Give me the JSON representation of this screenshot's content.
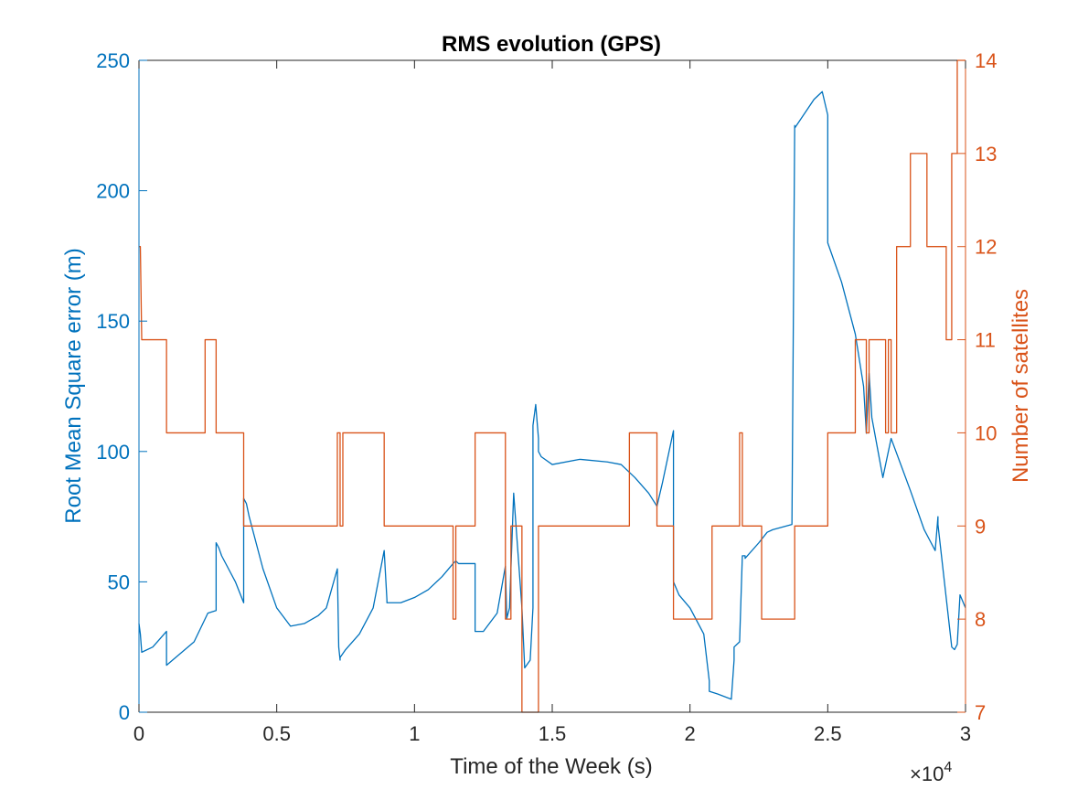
{
  "chart_data": {
    "type": "line",
    "title": "RMS evolution (GPS)",
    "xlabel": "Time of the Week (s)",
    "x_exponent_label": "×10",
    "x_exponent_power": "4",
    "xlim": [
      0,
      3
    ],
    "x_ticks": [
      0,
      0.5,
      1,
      1.5,
      2,
      2.5,
      3
    ],
    "x_tick_labels": [
      "0",
      "0.5",
      "1",
      "1.5",
      "2",
      "2.5",
      "3"
    ],
    "left_axis": {
      "label": "Root Mean Square error (m)",
      "ylim": [
        0,
        250
      ],
      "ticks": [
        0,
        50,
        100,
        150,
        200,
        250
      ],
      "tick_labels": [
        "0",
        "50",
        "100",
        "150",
        "200",
        "250"
      ],
      "color": "#0072BD"
    },
    "right_axis": {
      "label": "Number of satellites",
      "ylim": [
        7,
        14
      ],
      "ticks": [
        7,
        8,
        9,
        10,
        11,
        12,
        13,
        14
      ],
      "tick_labels": [
        "7",
        "8",
        "9",
        "10",
        "11",
        "12",
        "13",
        "14"
      ],
      "color": "#D95319"
    },
    "grid": false,
    "series": [
      {
        "axis": "left",
        "color": "#0072BD",
        "x": [
          0,
          0.005,
          0.01,
          0.05,
          0.1,
          0.1,
          0.2,
          0.25,
          0.28,
          0.28,
          0.29,
          0.3,
          0.35,
          0.38,
          0.38,
          0.39,
          0.4,
          0.45,
          0.5,
          0.55,
          0.6,
          0.65,
          0.68,
          0.72,
          0.725,
          0.73,
          0.73,
          0.75,
          0.8,
          0.85,
          0.89,
          0.9,
          0.9,
          0.95,
          1.0,
          1.05,
          1.1,
          1.14,
          1.15,
          1.16,
          1.22,
          1.22,
          1.25,
          1.3,
          1.33,
          1.335,
          1.345,
          1.36,
          1.39,
          1.4,
          1.42,
          1.43,
          1.43,
          1.44,
          1.45,
          1.45,
          1.46,
          1.5,
          1.6,
          1.7,
          1.75,
          1.8,
          1.85,
          1.88,
          1.9,
          1.94,
          1.94,
          1.96,
          2.0,
          2.05,
          2.07,
          2.07,
          2.1,
          2.15,
          2.16,
          2.16,
          2.18,
          2.19,
          2.2,
          2.2,
          2.25,
          2.28,
          2.28,
          2.3,
          2.37,
          2.38,
          2.38,
          2.45,
          2.48,
          2.5,
          2.5,
          2.55,
          2.6,
          2.63,
          2.64,
          2.65,
          2.66,
          2.7,
          2.73,
          2.8,
          2.85,
          2.89,
          2.9,
          2.9,
          2.95,
          2.96,
          2.97,
          2.98,
          3.0
        ],
        "y": [
          34,
          30,
          23,
          25,
          31,
          18,
          27,
          38,
          39,
          65,
          63,
          60,
          50,
          42,
          82,
          80,
          75,
          55,
          40,
          33,
          34,
          37,
          40,
          55,
          25,
          20,
          21,
          24,
          30,
          40,
          62,
          43,
          42,
          42,
          44,
          47,
          52,
          57,
          58,
          57,
          57,
          31,
          31,
          38,
          56,
          36,
          40,
          84,
          40,
          17,
          20,
          40,
          110,
          118,
          105,
          100,
          98,
          95,
          97,
          96,
          95,
          90,
          84,
          79,
          88,
          108,
          50,
          45,
          40,
          30,
          12,
          8,
          7,
          5,
          20,
          25,
          27,
          60,
          60,
          59,
          65,
          69,
          69,
          70,
          72,
          225,
          224,
          235,
          238,
          229,
          180,
          165,
          145,
          125,
          107,
          130,
          113,
          90,
          105,
          85,
          70,
          62,
          75,
          72,
          25,
          24,
          26,
          45,
          40
        ]
      },
      {
        "axis": "right",
        "color": "#D95319",
        "x": [
          0,
          0.005,
          0.01,
          0.1,
          0.1,
          0.24,
          0.24,
          0.28,
          0.28,
          0.38,
          0.38,
          0.72,
          0.72,
          0.73,
          0.73,
          0.74,
          0.74,
          0.89,
          0.89,
          1.14,
          1.14,
          1.15,
          1.15,
          1.22,
          1.22,
          1.33,
          1.33,
          1.35,
          1.35,
          1.39,
          1.39,
          1.45,
          1.45,
          1.78,
          1.78,
          1.88,
          1.88,
          1.94,
          1.94,
          2.08,
          2.08,
          2.18,
          2.18,
          2.19,
          2.19,
          2.26,
          2.26,
          2.38,
          2.38,
          2.5,
          2.5,
          2.6,
          2.6,
          2.64,
          2.64,
          2.65,
          2.65,
          2.71,
          2.71,
          2.72,
          2.72,
          2.73,
          2.73,
          2.75,
          2.75,
          2.8,
          2.8,
          2.86,
          2.86,
          2.93,
          2.93,
          2.95,
          2.95,
          2.97,
          2.97,
          3.0
        ],
        "y": [
          12,
          12,
          11,
          11,
          10,
          10,
          11,
          11,
          10,
          10,
          9,
          9,
          10,
          10,
          9,
          9,
          10,
          10,
          9,
          9,
          8,
          8,
          9,
          9,
          10,
          10,
          8,
          8,
          9,
          9,
          7,
          7,
          9,
          9,
          10,
          10,
          9,
          9,
          8,
          8,
          9,
          9,
          10,
          10,
          9,
          9,
          8,
          8,
          9,
          9,
          10,
          10,
          11,
          11,
          10,
          10,
          11,
          11,
          10,
          10,
          11,
          11,
          10,
          10,
          12,
          12,
          13,
          13,
          12,
          12,
          11,
          11,
          13,
          13,
          14,
          14
        ]
      }
    ]
  }
}
